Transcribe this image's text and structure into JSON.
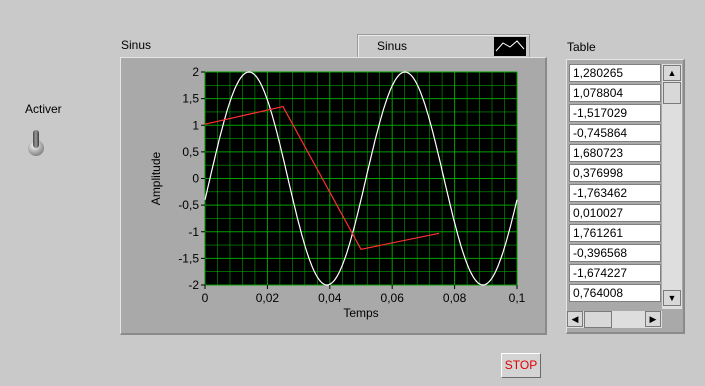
{
  "controls": {
    "activer_label": "Activer",
    "stop_label": "STOP"
  },
  "graph": {
    "title": "Sinus",
    "legend_label": "Sinus",
    "xlabel": "Temps",
    "ylabel": "Amplitude",
    "plot_bg_color": "#000000",
    "grid_color": "#00a000",
    "sine_color": "#ffffff",
    "red_color": "#ff3030"
  },
  "table": {
    "title": "Table",
    "values": [
      "1,280265",
      "1,078804",
      "-1,517029",
      "-0,745864",
      "1,680723",
      "0,376998",
      "-1,763462",
      "0,010027",
      "1,761261",
      "-0,396568",
      "-1,674227",
      "0,764008"
    ]
  },
  "chart_data": {
    "type": "line",
    "title": "Sinus",
    "xlabel": "Temps",
    "ylabel": "Amplitude",
    "xlim": [
      0,
      0.1
    ],
    "ylim": [
      -2,
      2
    ],
    "x_ticks": [
      "0",
      "0,02",
      "0,04",
      "0,06",
      "0,08",
      "0,1"
    ],
    "y_ticks": [
      "2",
      "1,5",
      "1",
      "0,5",
      "0",
      "-0,5",
      "-1",
      "-1,5",
      "-2"
    ],
    "grid": true,
    "series": [
      {
        "name": "Sinus",
        "color": "#ffffff",
        "x": [
          0,
          0.005,
          0.01,
          0.015,
          0.02,
          0.025,
          0.03,
          0.035,
          0.04,
          0.045,
          0.05,
          0.055,
          0.06,
          0.065,
          0.07,
          0.075,
          0.08,
          0.085,
          0.09,
          0.095,
          0.1
        ],
        "y": [
          -0.41,
          0.38,
          1.09,
          1.63,
          1.94,
          1.96,
          1.71,
          1.22,
          0.55,
          -0.2,
          -0.92,
          -1.51,
          -1.89,
          -2.0,
          -1.82,
          -1.39,
          -0.76,
          -0.02,
          0.73,
          1.36,
          1.8
        ]
      },
      {
        "color": "#ff3030",
        "x": [
          0,
          0.025,
          0.05,
          0.075
        ],
        "y": [
          1.02,
          1.35,
          -1.33,
          -1.03
        ]
      }
    ]
  }
}
